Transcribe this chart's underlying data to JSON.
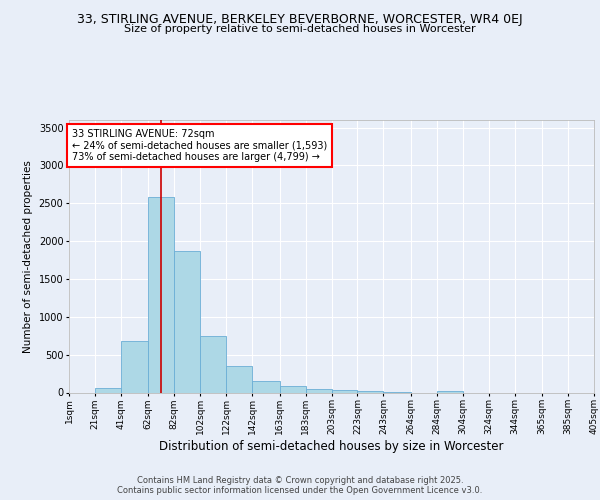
{
  "title_line1": "33, STIRLING AVENUE, BERKELEY BEVERBORNE, WORCESTER, WR4 0EJ",
  "title_line2": "Size of property relative to semi-detached houses in Worcester",
  "xlabel": "Distribution of semi-detached houses by size in Worcester",
  "ylabel": "Number of semi-detached properties",
  "footer_line1": "Contains HM Land Registry data © Crown copyright and database right 2025.",
  "footer_line2": "Contains public sector information licensed under the Open Government Licence v3.0.",
  "annotation_line1": "33 STIRLING AVENUE: 72sqm",
  "annotation_line2": "← 24% of semi-detached houses are smaller (1,593)",
  "annotation_line3": "73% of semi-detached houses are larger (4,799) →",
  "property_size": 72,
  "bin_edges": [
    1,
    21,
    41,
    62,
    82,
    102,
    122,
    142,
    163,
    183,
    203,
    223,
    243,
    264,
    284,
    304,
    324,
    344,
    365,
    385,
    405
  ],
  "bin_labels": [
    "1sqm",
    "21sqm",
    "41sqm",
    "62sqm",
    "82sqm",
    "102sqm",
    "122sqm",
    "142sqm",
    "163sqm",
    "183sqm",
    "203sqm",
    "223sqm",
    "243sqm",
    "264sqm",
    "284sqm",
    "304sqm",
    "324sqm",
    "344sqm",
    "365sqm",
    "385sqm",
    "405sqm"
  ],
  "counts": [
    0,
    60,
    680,
    2580,
    1870,
    740,
    350,
    155,
    85,
    50,
    30,
    20,
    10,
    0,
    25,
    0,
    0,
    0,
    0,
    0
  ],
  "bar_color": "#add8e6",
  "bar_edge_color": "#6baed6",
  "marker_color": "#cc0000",
  "ylim": [
    0,
    3600
  ],
  "yticks": [
    0,
    500,
    1000,
    1500,
    2000,
    2500,
    3000,
    3500
  ],
  "bg_color": "#e8eef8",
  "grid_color": "#ffffff",
  "title1_fontsize": 9,
  "title2_fontsize": 8,
  "footer_fontsize": 6,
  "annot_fontsize": 7,
  "xlabel_fontsize": 8.5,
  "ylabel_fontsize": 7.5,
  "tick_fontsize": 6.5
}
